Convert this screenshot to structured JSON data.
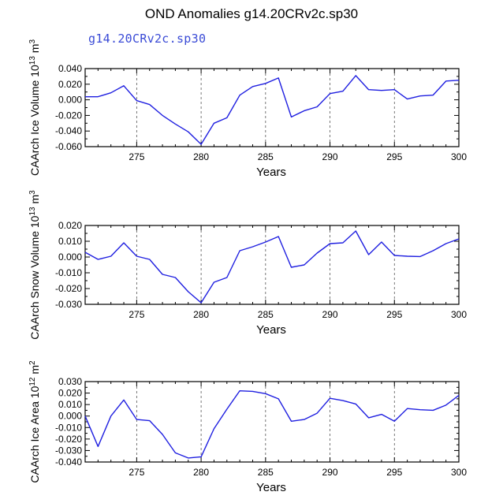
{
  "page": {
    "title": "OND Anomalies g14.20CRv2c.sp30",
    "run_label": "g14.20CRv2c.sp30"
  },
  "colors": {
    "line": "#1f1fe0",
    "axis": "#000000",
    "grid": "#555555",
    "run_label": "#3a4bd6"
  },
  "chart_data": [
    {
      "type": "line",
      "ylabel": "CAArch Ice Volume 10^13 m^3",
      "ylabel_parts": {
        "prefix": "CAArch Ice Volume 10",
        "exp": "13",
        "unit": " m",
        "unit_exp": "3"
      },
      "xlabel": "Years",
      "xlim": [
        271,
        300
      ],
      "ylim": [
        -0.06,
        0.04
      ],
      "yticks": [
        0.04,
        0.02,
        0.0,
        -0.02,
        -0.04,
        -0.06
      ],
      "ytick_labels": [
        "0.040",
        "0.020",
        "0.000",
        "-0.020",
        "-0.040",
        "-0.060"
      ],
      "xticks": [
        275,
        280,
        285,
        290,
        295,
        300
      ],
      "xtick_labels": [
        "275",
        "280",
        "285",
        "290",
        "295",
        "300"
      ],
      "grid_x": [
        275,
        280,
        285,
        290,
        295
      ],
      "x": [
        271,
        272,
        273,
        274,
        275,
        276,
        277,
        278,
        279,
        280,
        281,
        282,
        283,
        284,
        285,
        286,
        287,
        288,
        289,
        290,
        291,
        292,
        293,
        294,
        295,
        296,
        297,
        298,
        299,
        300
      ],
      "y": [
        0.004,
        0.004,
        0.009,
        0.018,
        -0.001,
        -0.006,
        -0.02,
        -0.031,
        -0.041,
        -0.057,
        -0.03,
        -0.023,
        0.006,
        0.017,
        0.021,
        0.028,
        -0.022,
        -0.014,
        -0.009,
        0.008,
        0.011,
        0.031,
        0.013,
        0.012,
        0.013,
        0.001,
        0.005,
        0.006,
        0.024,
        0.025
      ]
    },
    {
      "type": "line",
      "ylabel": "CAArch Snow Volume 10^13 m^3",
      "ylabel_parts": {
        "prefix": "CAArch Snow Volume 10",
        "exp": "13",
        "unit": " m",
        "unit_exp": "3"
      },
      "xlabel": "Years",
      "xlim": [
        271,
        300
      ],
      "ylim": [
        -0.03,
        0.02
      ],
      "yticks": [
        0.02,
        0.01,
        0.0,
        -0.01,
        -0.02,
        -0.03
      ],
      "ytick_labels": [
        "0.020",
        "0.010",
        "0.000",
        "-0.010",
        "-0.020",
        "-0.030"
      ],
      "xticks": [
        275,
        280,
        285,
        290,
        295,
        300
      ],
      "xtick_labels": [
        "275",
        "280",
        "285",
        "290",
        "295",
        "300"
      ],
      "grid_x": [
        275,
        280,
        285,
        290,
        295
      ],
      "x": [
        271,
        272,
        273,
        274,
        275,
        276,
        277,
        278,
        279,
        280,
        281,
        282,
        283,
        284,
        285,
        286,
        287,
        288,
        289,
        290,
        291,
        292,
        293,
        294,
        295,
        296,
        297,
        298,
        299,
        300
      ],
      "y": [
        0.003,
        -0.0015,
        0.0005,
        0.009,
        0.0005,
        -0.0015,
        -0.011,
        -0.013,
        -0.022,
        -0.029,
        -0.016,
        -0.013,
        0.004,
        0.0065,
        0.0095,
        0.013,
        -0.0065,
        -0.005,
        0.0025,
        0.0085,
        0.009,
        0.0165,
        0.0015,
        0.0095,
        0.001,
        0.0005,
        0.0003,
        0.004,
        0.0085,
        0.0115
      ]
    },
    {
      "type": "line",
      "ylabel": "CAArch Ice Area 10^12 m^2",
      "ylabel_parts": {
        "prefix": "CAArch Ice Area 10",
        "exp": "12",
        "unit": " m",
        "unit_exp": "2"
      },
      "xlabel": "Years",
      "xlim": [
        271,
        300
      ],
      "ylim": [
        -0.04,
        0.03
      ],
      "yticks": [
        0.03,
        0.02,
        0.01,
        0.0,
        -0.01,
        -0.02,
        -0.03,
        -0.04
      ],
      "ytick_labels": [
        "0.030",
        "0.020",
        "0.010",
        "0.000",
        "-0.010",
        "-0.020",
        "-0.030",
        "-0.040"
      ],
      "xticks": [
        275,
        280,
        285,
        290,
        295,
        300
      ],
      "xtick_labels": [
        "275",
        "280",
        "285",
        "290",
        "295",
        "300"
      ],
      "grid_x": [
        275,
        280,
        285,
        290,
        295
      ],
      "x": [
        271,
        272,
        273,
        274,
        275,
        276,
        277,
        278,
        279,
        280,
        281,
        282,
        283,
        284,
        285,
        286,
        287,
        288,
        289,
        290,
        291,
        292,
        293,
        294,
        295,
        296,
        297,
        298,
        299,
        300
      ],
      "y": [
        0.0,
        -0.0265,
        0.0,
        0.014,
        -0.003,
        -0.004,
        -0.016,
        -0.032,
        -0.0365,
        -0.0355,
        -0.011,
        0.006,
        0.022,
        0.0215,
        0.0195,
        0.015,
        -0.0045,
        -0.003,
        0.0025,
        0.0155,
        0.0135,
        0.0105,
        -0.0015,
        0.0015,
        -0.0045,
        0.0065,
        0.0055,
        0.005,
        0.0095,
        0.018
      ]
    }
  ]
}
